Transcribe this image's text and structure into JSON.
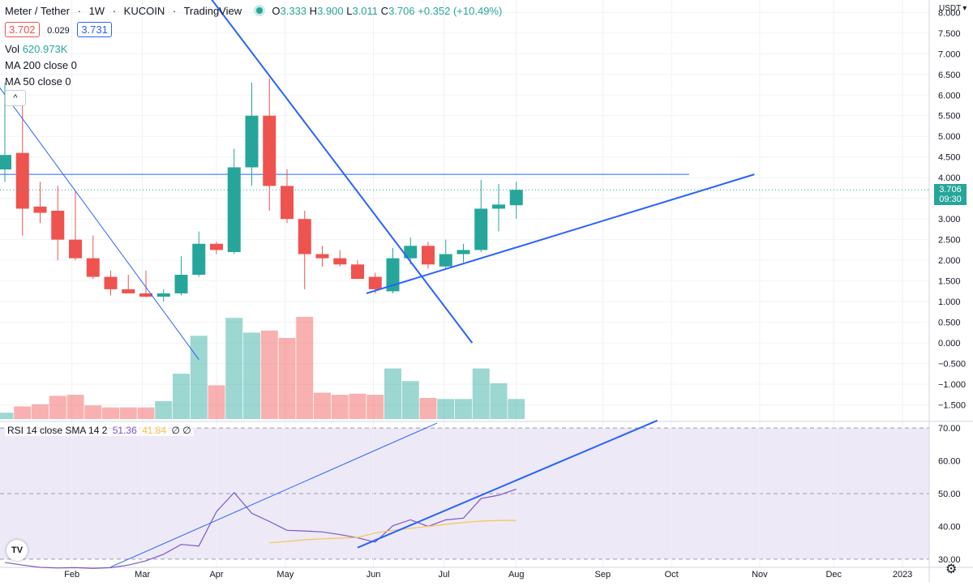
{
  "legend": {
    "symbol": "Meter / Tether",
    "interval": "1W",
    "exchange": "KUCOIN",
    "source": "TradingView",
    "ohlc": {
      "o_label": "O",
      "o": "3.333",
      "h_label": "H",
      "h": "3.900",
      "l_label": "L",
      "l": "3.011",
      "c_label": "C",
      "c": "3.706",
      "change": "+0.352 (+10.49%)"
    },
    "bid": "3.702",
    "spread": "0.029",
    "ask": "3.731",
    "vol_label": "Vol",
    "vol_value": "620.973K",
    "ma200": "MA 200 close 0",
    "ma50": "MA 50 close 0",
    "collapse_glyph": "^"
  },
  "price_axis": {
    "currency": "USDT",
    "last_price": "3.706",
    "countdown": "09:30"
  },
  "rsi_legend": {
    "title": "RSI 14 close SMA 14 2",
    "rsi": "51.36",
    "sma": "41.84",
    "extra": "∅ ∅"
  },
  "branding": {
    "logo_text": "TV"
  },
  "icons": {
    "settings": "gear-icon",
    "logo": "tradingview-logo-icon",
    "collapse": "chevron-up-icon"
  },
  "chart_data": [
    {
      "type": "candlestick",
      "yscale": "linear",
      "ylim": [
        -1.9,
        8.3
      ],
      "price_ticks": [
        -1.5,
        -1.0,
        -0.5,
        0.0,
        0.5,
        1.0,
        1.5,
        2.0,
        2.5,
        3.0,
        3.5,
        4.0,
        4.5,
        5.0,
        5.5,
        6.0,
        6.5,
        7.0,
        7.5,
        8.0
      ],
      "price_tick_labels": [
        "−1.500",
        "−1.000",
        "−0.500",
        "0.000",
        "0.500",
        "1.000",
        "1.500",
        "2.000",
        "2.500",
        "3.000",
        "3.500",
        "4.000",
        "4.500",
        "5.000",
        "5.500",
        "6.000",
        "6.500",
        "7.000",
        "7.500",
        "8.000"
      ],
      "x_labels": [
        "Feb",
        "Mar",
        "Apr",
        "May",
        "Jun",
        "Jul",
        "Aug",
        "Sep",
        "Oct",
        "Nov",
        "Dec",
        "2023"
      ],
      "x_label_weeks": [
        3.8,
        7.8,
        12.0,
        15.9,
        20.9,
        24.9,
        29.0,
        33.9,
        37.8,
        42.8,
        47.0,
        50.9
      ],
      "candles": [
        {
          "o": 4.2,
          "h": 6.3,
          "l": 3.9,
          "c": 4.55
        },
        {
          "o": 4.6,
          "h": 6.1,
          "l": 2.6,
          "c": 3.25
        },
        {
          "o": 3.3,
          "h": 3.9,
          "l": 2.9,
          "c": 3.15
        },
        {
          "o": 3.2,
          "h": 3.8,
          "l": 2.0,
          "c": 2.5
        },
        {
          "o": 2.5,
          "h": 3.7,
          "l": 2.0,
          "c": 2.05
        },
        {
          "o": 2.05,
          "h": 2.6,
          "l": 1.55,
          "c": 1.6
        },
        {
          "o": 1.6,
          "h": 1.75,
          "l": 1.15,
          "c": 1.3
        },
        {
          "o": 1.3,
          "h": 1.65,
          "l": 1.2,
          "c": 1.2
        },
        {
          "o": 1.2,
          "h": 1.75,
          "l": 1.1,
          "c": 1.12
        },
        {
          "o": 1.12,
          "h": 1.3,
          "l": 1.0,
          "c": 1.2
        },
        {
          "o": 1.2,
          "h": 2.1,
          "l": 1.15,
          "c": 1.65
        },
        {
          "o": 1.65,
          "h": 2.7,
          "l": 1.6,
          "c": 2.4
        },
        {
          "o": 2.4,
          "h": 2.45,
          "l": 2.15,
          "c": 2.25
        },
        {
          "o": 2.2,
          "h": 4.7,
          "l": 2.15,
          "c": 4.25
        },
        {
          "o": 4.25,
          "h": 6.3,
          "l": 3.8,
          "c": 5.5
        },
        {
          "o": 5.5,
          "h": 6.4,
          "l": 3.2,
          "c": 3.8
        },
        {
          "o": 3.8,
          "h": 4.2,
          "l": 2.9,
          "c": 3.0
        },
        {
          "o": 3.0,
          "h": 3.2,
          "l": 1.3,
          "c": 2.15
        },
        {
          "o": 2.15,
          "h": 2.35,
          "l": 1.85,
          "c": 2.05
        },
        {
          "o": 2.05,
          "h": 2.25,
          "l": 1.85,
          "c": 1.9
        },
        {
          "o": 1.9,
          "h": 2.0,
          "l": 1.55,
          "c": 1.55
        },
        {
          "o": 1.6,
          "h": 1.7,
          "l": 1.2,
          "c": 1.3
        },
        {
          "o": 1.25,
          "h": 2.3,
          "l": 1.2,
          "c": 2.05
        },
        {
          "o": 2.05,
          "h": 2.55,
          "l": 1.9,
          "c": 2.35
        },
        {
          "o": 2.35,
          "h": 2.45,
          "l": 1.8,
          "c": 1.9
        },
        {
          "o": 1.85,
          "h": 2.5,
          "l": 1.8,
          "c": 2.15
        },
        {
          "o": 2.15,
          "h": 2.4,
          "l": 1.95,
          "c": 2.25
        },
        {
          "o": 2.25,
          "h": 3.95,
          "l": 2.2,
          "c": 3.25
        },
        {
          "o": 3.25,
          "h": 3.85,
          "l": 2.7,
          "c": 3.35
        },
        {
          "o": 3.333,
          "h": 3.9,
          "l": 3.011,
          "c": 3.706
        }
      ],
      "volumes": [
        6,
        12,
        14,
        22,
        23,
        13,
        11,
        11,
        11,
        17,
        43,
        79,
        32,
        96,
        82,
        84,
        77,
        97,
        25,
        23,
        24,
        23,
        48,
        36,
        20,
        19,
        19,
        48,
        34,
        19
      ],
      "volume_max": 100,
      "horizontal_line": 4.08,
      "trendlines": [
        {
          "from": [
            -0.5,
            6.3
          ],
          "to": [
            11.0,
            -0.4
          ]
        },
        {
          "from": [
            10.5,
            9.0
          ],
          "to": [
            26.5,
            0.0
          ]
        },
        {
          "from": [
            20.5,
            1.2
          ],
          "to": [
            42.5,
            4.08
          ]
        }
      ]
    },
    {
      "type": "line",
      "ylim": [
        27.5,
        72
      ],
      "rsi_ticks": [
        30,
        40,
        50,
        60,
        70
      ],
      "rsi_tick_labels": [
        "30.00",
        "40.00",
        "50.00",
        "60.00",
        "70.00"
      ],
      "band_upper": 70,
      "band_middle": 50,
      "band_lower": 30,
      "series": [
        {
          "values": [
            29,
            28.2,
            27.5,
            27.3,
            27.4,
            27.2,
            27.4,
            28.2,
            29.5,
            31.5,
            34.5,
            34,
            44.5,
            50.3,
            44,
            41.5,
            38.8,
            38.6,
            38.3,
            37.5,
            36.5,
            35.2,
            40.2,
            42,
            40,
            42,
            42.5,
            48.5,
            49.5,
            51.36
          ],
          "start_week": 4
        },
        {
          "values": [
            35,
            35.4,
            35.9,
            36.2,
            36.4,
            36.6,
            38,
            38.8,
            39.4,
            40,
            40.6,
            41.2,
            41.6,
            41.8,
            41.84
          ],
          "start_week": 19
        }
      ],
      "trendlines": [
        {
          "from": [
            6.0,
            27.6
          ],
          "to": [
            24.5,
            71.5
          ]
        },
        {
          "from": [
            20.0,
            33.5
          ],
          "to": [
            37.0,
            72.3
          ]
        }
      ]
    }
  ]
}
